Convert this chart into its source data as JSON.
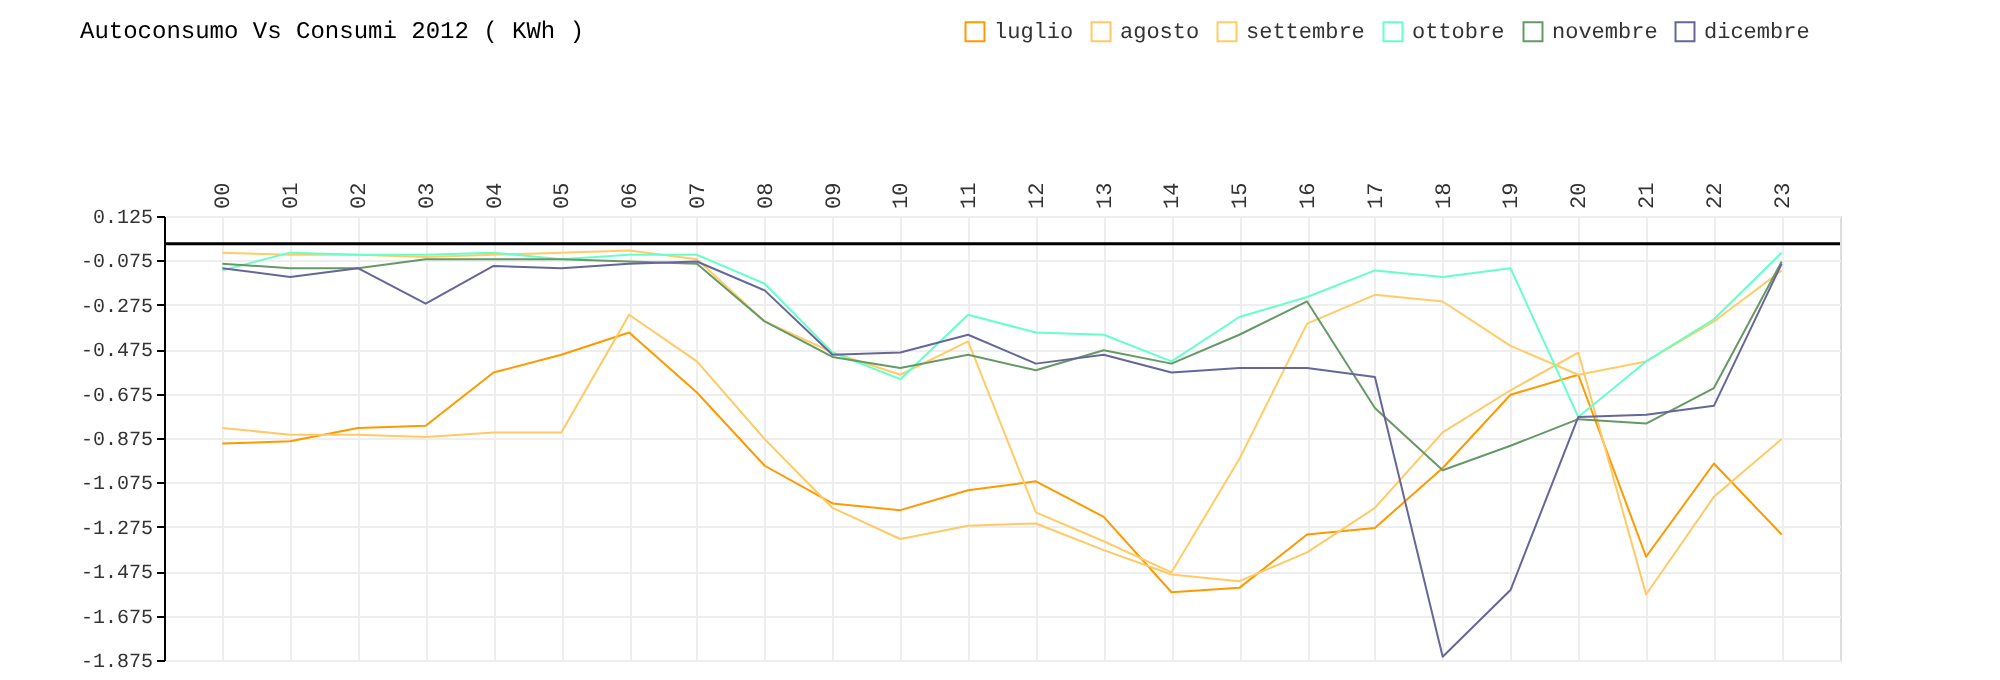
{
  "chart_data": {
    "type": "line",
    "title": "Autoconsumo Vs Consumi 2012 ( KWh )",
    "categories": [
      "00",
      "01",
      "02",
      "03",
      "04",
      "05",
      "06",
      "07",
      "08",
      "09",
      "10",
      "11",
      "12",
      "13",
      "14",
      "15",
      "16",
      "17",
      "18",
      "19",
      "20",
      "21",
      "22",
      "23"
    ],
    "ylim": [
      -1.875,
      0.125
    ],
    "yticks": [
      0.125,
      -0.075,
      -0.275,
      -0.475,
      -0.675,
      -0.875,
      -1.075,
      -1.275,
      -1.475,
      -1.675,
      -1.875
    ],
    "grid": true,
    "legend": "top right",
    "marker": "none",
    "line_style": "solid",
    "ref_lines": [
      {
        "axis": "y",
        "value": 0,
        "color": "#000000"
      }
    ],
    "series": [
      {
        "name": "luglio",
        "color": "#ff9900",
        "values": [
          -0.9,
          -0.89,
          -0.83,
          -0.82,
          -0.58,
          -0.5,
          -0.4,
          -0.67,
          -1.0,
          -1.17,
          -1.2,
          -1.11,
          -1.07,
          -1.23,
          -1.57,
          -1.55,
          -1.31,
          -1.28,
          -1.01,
          -0.68,
          -0.59,
          -1.41,
          -0.99,
          -1.31
        ]
      },
      {
        "name": "agosto",
        "color": "#ffc966",
        "values": [
          -0.83,
          -0.86,
          -0.86,
          -0.87,
          -0.85,
          -0.85,
          -0.32,
          -0.53,
          -0.88,
          -1.19,
          -1.33,
          -1.27,
          -1.26,
          -1.38,
          -1.49,
          -1.52,
          -1.39,
          -1.19,
          -0.85,
          -0.66,
          -0.49,
          -1.58,
          -1.14,
          -0.88
        ]
      },
      {
        "name": "settembre",
        "color": "#ffcc66",
        "values": [
          -0.04,
          -0.05,
          -0.05,
          -0.06,
          -0.05,
          -0.04,
          -0.03,
          -0.07,
          -0.35,
          -0.49,
          -0.59,
          -0.44,
          -1.21,
          -1.34,
          -1.48,
          -0.97,
          -0.36,
          -0.23,
          -0.26,
          -0.46,
          -0.59,
          -0.53,
          -0.35,
          -0.12
        ]
      },
      {
        "name": "ottobre",
        "color": "#66ffcc",
        "values": [
          -0.12,
          -0.04,
          -0.05,
          -0.05,
          -0.04,
          -0.07,
          -0.05,
          -0.05,
          -0.18,
          -0.49,
          -0.61,
          -0.32,
          -0.4,
          -0.41,
          -0.53,
          -0.33,
          -0.24,
          -0.12,
          -0.15,
          -0.11,
          -0.78,
          -0.53,
          -0.34,
          -0.04
        ]
      },
      {
        "name": "novembre",
        "color": "#669966",
        "values": [
          -0.09,
          -0.11,
          -0.11,
          -0.07,
          -0.07,
          -0.07,
          -0.08,
          -0.09,
          -0.35,
          -0.51,
          -0.56,
          -0.5,
          -0.57,
          -0.48,
          -0.54,
          -0.41,
          -0.26,
          -0.74,
          -1.02,
          -0.91,
          -0.79,
          -0.81,
          -0.65,
          -0.08
        ]
      },
      {
        "name": "dicembre",
        "color": "#666699",
        "values": [
          -0.11,
          -0.15,
          -0.11,
          -0.27,
          -0.1,
          -0.11,
          -0.09,
          -0.08,
          -0.21,
          -0.5,
          -0.49,
          -0.41,
          -0.54,
          -0.5,
          -0.58,
          -0.56,
          -0.56,
          -0.6,
          -1.86,
          -1.56,
          -0.78,
          -0.77,
          -0.73,
          -0.09
        ]
      }
    ]
  }
}
